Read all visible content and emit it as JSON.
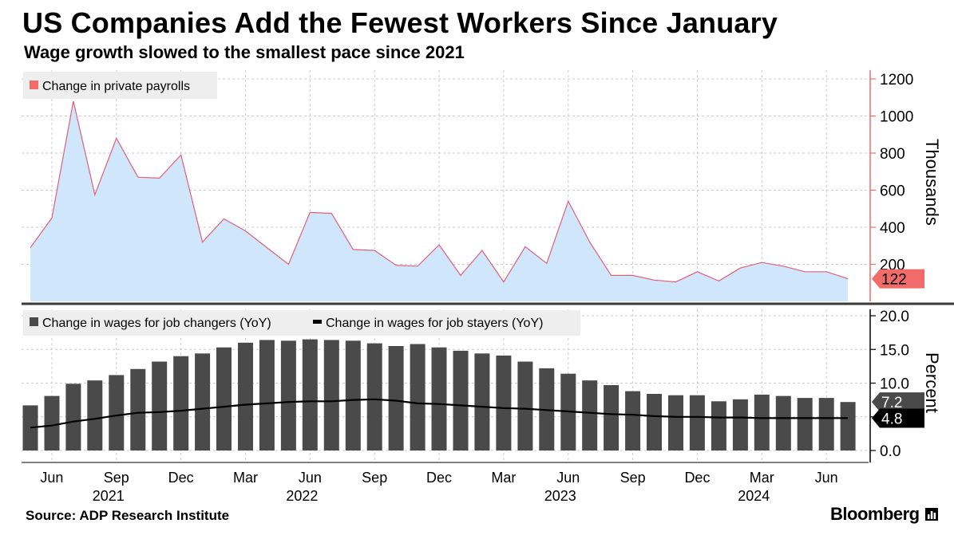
{
  "header": {
    "title": "US Companies Add the Fewest Workers Since January",
    "subtitle": "Wage growth slowed to the smallest pace since 2021"
  },
  "footer": {
    "source": "Source: ADP Research Institute",
    "brand": "Bloomberg"
  },
  "colors": {
    "area_fill": "#cfe6fb",
    "area_line": "#e0607a",
    "bars": "#4a4a4a",
    "line": "#000000",
    "grid": "#cccccc",
    "accent": "#f26b6b",
    "divider": "#3a3a3a",
    "legend_bg": "#eeeeee"
  },
  "chart_data": [
    {
      "type": "area",
      "legend": [
        "Change in private payrolls"
      ],
      "ylabel": "Thousands",
      "ylim": [
        0,
        1200
      ],
      "yticks": [
        "200",
        "400",
        "600",
        "800",
        "1000",
        "1200"
      ],
      "grid": true,
      "legend_position": "top-left",
      "series": [
        {
          "name": "Change in private payrolls",
          "x": [
            "2021-05",
            "2021-06",
            "2021-07",
            "2021-08",
            "2021-09",
            "2021-10",
            "2021-11",
            "2021-12",
            "2022-01",
            "2022-02",
            "2022-03",
            "2022-04",
            "2022-05",
            "2022-06",
            "2022-07",
            "2022-08",
            "2022-09",
            "2022-10",
            "2022-11",
            "2022-12",
            "2023-01",
            "2023-02",
            "2023-03",
            "2023-04",
            "2023-05",
            "2023-06",
            "2023-07",
            "2023-08",
            "2023-09",
            "2023-10",
            "2023-11",
            "2023-12",
            "2024-01",
            "2024-02",
            "2024-03",
            "2024-04",
            "2024-05",
            "2024-06",
            "2024-07"
          ],
          "values": [
            290,
            450,
            1080,
            575,
            880,
            670,
            665,
            790,
            320,
            445,
            380,
            290,
            200,
            480,
            475,
            280,
            275,
            195,
            190,
            305,
            140,
            275,
            105,
            295,
            205,
            540,
            320,
            140,
            140,
            115,
            105,
            160,
            110,
            180,
            210,
            190,
            160,
            160,
            122
          ],
          "last_value_label": "122"
        }
      ]
    },
    {
      "type": "bar",
      "ylabel": "Percent",
      "ylim": [
        0,
        20
      ],
      "yticks": [
        "0.0",
        "5.0",
        "10.0",
        "15.0",
        "20.0"
      ],
      "grid": true,
      "legend_position": "top-left",
      "x_axis": {
        "month_labels": [
          "Jun",
          "Sep",
          "Dec",
          "Mar",
          "Jun",
          "Sep",
          "Dec",
          "Mar",
          "Jun",
          "Sep",
          "Dec",
          "Mar",
          "Jun"
        ],
        "year_labels": [
          "2021",
          "2022",
          "2023",
          "2024"
        ]
      },
      "series": [
        {
          "name": "Change in wages for job changers (YoY)",
          "type": "bar",
          "x": [
            "2021-05",
            "2021-06",
            "2021-07",
            "2021-08",
            "2021-09",
            "2021-10",
            "2021-11",
            "2021-12",
            "2022-01",
            "2022-02",
            "2022-03",
            "2022-04",
            "2022-05",
            "2022-06",
            "2022-07",
            "2022-08",
            "2022-09",
            "2022-10",
            "2022-11",
            "2022-12",
            "2023-01",
            "2023-02",
            "2023-03",
            "2023-04",
            "2023-05",
            "2023-06",
            "2023-07",
            "2023-08",
            "2023-09",
            "2023-10",
            "2023-11",
            "2023-12",
            "2024-01",
            "2024-02",
            "2024-03",
            "2024-04",
            "2024-05",
            "2024-06",
            "2024-07"
          ],
          "values": [
            6.7,
            8.1,
            9.9,
            10.4,
            11.2,
            12.1,
            13.2,
            14.0,
            14.4,
            15.3,
            16.0,
            16.4,
            16.3,
            16.5,
            16.4,
            16.3,
            15.9,
            15.5,
            15.8,
            15.3,
            14.8,
            14.4,
            14.1,
            13.2,
            12.2,
            11.4,
            10.4,
            9.7,
            8.8,
            8.4,
            8.2,
            8.2,
            7.3,
            7.6,
            8.3,
            8.1,
            7.8,
            7.8,
            7.2
          ],
          "last_value_label": "7.2"
        },
        {
          "name": "Change in wages for job stayers (YoY)",
          "type": "line",
          "x": [
            "2021-05",
            "2021-06",
            "2021-07",
            "2021-08",
            "2021-09",
            "2021-10",
            "2021-11",
            "2021-12",
            "2022-01",
            "2022-02",
            "2022-03",
            "2022-04",
            "2022-05",
            "2022-06",
            "2022-07",
            "2022-08",
            "2022-09",
            "2022-10",
            "2022-11",
            "2022-12",
            "2023-01",
            "2023-02",
            "2023-03",
            "2023-04",
            "2023-05",
            "2023-06",
            "2023-07",
            "2023-08",
            "2023-09",
            "2023-10",
            "2023-11",
            "2023-12",
            "2024-01",
            "2024-02",
            "2024-03",
            "2024-04",
            "2024-05",
            "2024-06",
            "2024-07"
          ],
          "values": [
            3.4,
            3.7,
            4.3,
            4.7,
            5.2,
            5.6,
            5.7,
            5.9,
            6.2,
            6.5,
            6.8,
            7.0,
            7.2,
            7.3,
            7.3,
            7.5,
            7.6,
            7.4,
            7.0,
            6.9,
            6.7,
            6.5,
            6.3,
            6.2,
            6.0,
            5.8,
            5.6,
            5.4,
            5.3,
            5.1,
            5.0,
            5.0,
            4.9,
            4.9,
            4.8,
            4.8,
            4.8,
            4.8,
            4.8
          ],
          "last_value_label": "4.8"
        }
      ]
    }
  ]
}
